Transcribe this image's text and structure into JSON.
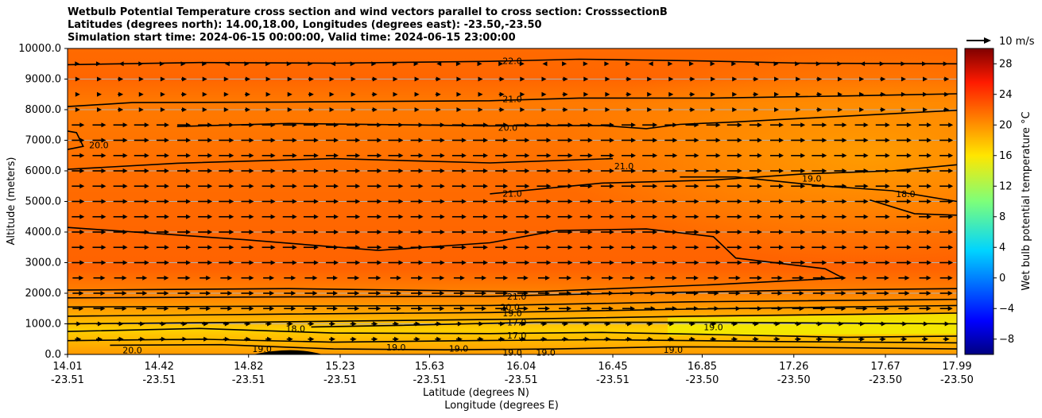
{
  "titles": {
    "line1": "Wetbulb Potential Temperature cross section and wind vectors parallel to cross section: CrosssectionB",
    "line2": "Latitudes (degrees north): 14.00,18.00, Longitudes (degrees east): -23.50,-23.50",
    "line3": "Simulation start time: 2024-06-15 00:00:00, Valid time: 2024-06-15 23:00:00"
  },
  "chart_data": {
    "type": "heatmap",
    "variable": "wet bulb potential temperature",
    "ylabel": "Altitude (meters)",
    "xlabel_lat": "Latitude (degrees N)",
    "xlabel_lon": "Longitude (degrees E)",
    "ylim": [
      0,
      10000
    ],
    "y_ticks": [
      "0.0",
      "1000.0",
      "2000.0",
      "3000.0",
      "4000.0",
      "5000.0",
      "6000.0",
      "7000.0",
      "8000.0",
      "9000.0",
      "10000.0"
    ],
    "x_ticks": [
      {
        "lat": "14.01",
        "lon": "-23.51"
      },
      {
        "lat": "14.42",
        "lon": "-23.51"
      },
      {
        "lat": "14.82",
        "lon": "-23.51"
      },
      {
        "lat": "15.23",
        "lon": "-23.51"
      },
      {
        "lat": "15.63",
        "lon": "-23.51"
      },
      {
        "lat": "16.04",
        "lon": "-23.51"
      },
      {
        "lat": "16.45",
        "lon": "-23.51"
      },
      {
        "lat": "16.85",
        "lon": "-23.50"
      },
      {
        "lat": "17.26",
        "lon": "-23.50"
      },
      {
        "lat": "17.67",
        "lon": "-23.50"
      },
      {
        "lat": "17.99",
        "lon": "-23.50"
      }
    ],
    "grid": "horizontal lines at y ticks",
    "colorbar": {
      "label": "Wet bulb potential temperature $^\\circ$C",
      "label_display": "Wet bulb potential temperature °C",
      "range": [
        -10,
        30
      ],
      "ticks": [
        "28",
        "24",
        "20",
        "16",
        "12",
        "8",
        "4",
        "0",
        "−4",
        "−8"
      ],
      "colormap": "jet"
    },
    "contour_labels": [
      {
        "text": "22.0",
        "x": 16.0,
        "y": 9600
      },
      {
        "text": "21.0",
        "x": 16.0,
        "y": 8350
      },
      {
        "text": "20.0",
        "x": 15.98,
        "y": 7420
      },
      {
        "text": "20.0",
        "x": 14.15,
        "y": 6850
      },
      {
        "text": "21.0",
        "x": 16.5,
        "y": 6150
      },
      {
        "text": "19.0",
        "x": 17.34,
        "y": 5750
      },
      {
        "text": "18.0",
        "x": 17.76,
        "y": 5250
      },
      {
        "text": "21.0",
        "x": 16.0,
        "y": 5260
      },
      {
        "text": "21.0",
        "x": 16.02,
        "y": 1900
      },
      {
        "text": "20.0",
        "x": 15.99,
        "y": 1550
      },
      {
        "text": "19.0",
        "x": 16.0,
        "y": 1350
      },
      {
        "text": "17.0",
        "x": 16.02,
        "y": 1050
      },
      {
        "text": "18.0",
        "x": 15.03,
        "y": 850
      },
      {
        "text": "17.0",
        "x": 16.02,
        "y": 620
      },
      {
        "text": "19.0",
        "x": 16.9,
        "y": 900
      },
      {
        "text": "19.0",
        "x": 15.48,
        "y": 230
      },
      {
        "text": "19.0",
        "x": 15.76,
        "y": 200
      },
      {
        "text": "19.0",
        "x": 16.0,
        "y": 70
      },
      {
        "text": "19.0",
        "x": 16.15,
        "y": 70
      },
      {
        "text": "19.0",
        "x": 16.72,
        "y": 150
      },
      {
        "text": "19.0",
        "x": 14.88,
        "y": 180
      },
      {
        "text": "20.0",
        "x": 14.3,
        "y": 140
      }
    ],
    "wind_reference": {
      "label": "10 m/s",
      "speed": 10
    }
  }
}
